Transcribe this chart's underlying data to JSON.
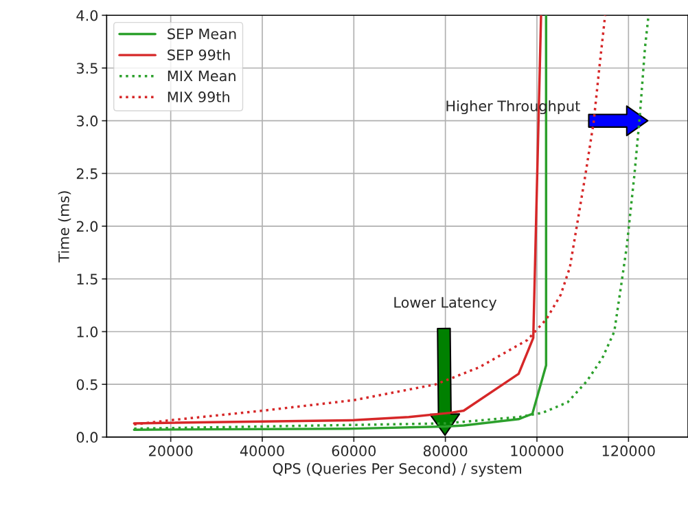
{
  "chart_data": {
    "type": "line",
    "xlabel": "QPS (Queries Per Second) / system",
    "ylabel": "Time (ms)",
    "xlim": [
      6000,
      133000
    ],
    "xticks": [
      20000,
      40000,
      60000,
      80000,
      100000,
      120000
    ],
    "ylim": [
      0,
      4.0
    ],
    "yticks": [
      {
        "value": 0,
        "label": "0.0"
      },
      0.5,
      {
        "value": 1,
        "label": "1.0"
      },
      1.5,
      {
        "value": 2,
        "label": "2.0"
      },
      2.5,
      {
        "value": 3,
        "label": "3.0"
      },
      3.5,
      {
        "value": 4,
        "label": "4.0"
      }
    ],
    "grid": true,
    "legend": "top left",
    "series": [
      {
        "name": "SEP Mean",
        "color": "#2ca02c",
        "line_style": "solid",
        "x": [
          12000,
          60000,
          80000,
          84000,
          96000,
          99000,
          102000,
          102000
        ],
        "values": [
          0.07,
          0.08,
          0.1,
          0.11,
          0.17,
          0.22,
          0.68,
          4.0
        ]
      },
      {
        "name": "SEP 99th",
        "color": "#d62728",
        "line_style": "solid",
        "x": [
          12000,
          60000,
          72000,
          81000,
          84000,
          96000,
          99200,
          100900
        ],
        "values": [
          0.13,
          0.16,
          0.19,
          0.23,
          0.25,
          0.6,
          0.94,
          4.0
        ]
      },
      {
        "name": "MIX Mean",
        "color": "#2ca02c",
        "line_style": "dotted",
        "x": [
          12000,
          80000,
          96000,
          101200,
          106700,
          110900,
          114300,
          116900,
          118400,
          119600,
          121300,
          122500,
          123600,
          124300
        ],
        "values": [
          0.08,
          0.13,
          0.19,
          0.23,
          0.33,
          0.53,
          0.75,
          1.0,
          1.44,
          1.8,
          2.49,
          3.06,
          3.69,
          3.97
        ]
      },
      {
        "name": "MIX 99th",
        "color": "#d62728",
        "line_style": "dotted",
        "x": [
          12000,
          20000,
          40000,
          60000,
          77900,
          87300,
          97900,
          102100,
          105200,
          107200,
          110600,
          112400,
          113600,
          114900
        ],
        "values": [
          0.12,
          0.16,
          0.25,
          0.35,
          0.5,
          0.66,
          0.92,
          1.12,
          1.35,
          1.61,
          2.49,
          2.99,
          3.49,
          4.0
        ]
      }
    ],
    "annotations": [
      "Lower Latency",
      "Higher Throughput"
    ]
  }
}
